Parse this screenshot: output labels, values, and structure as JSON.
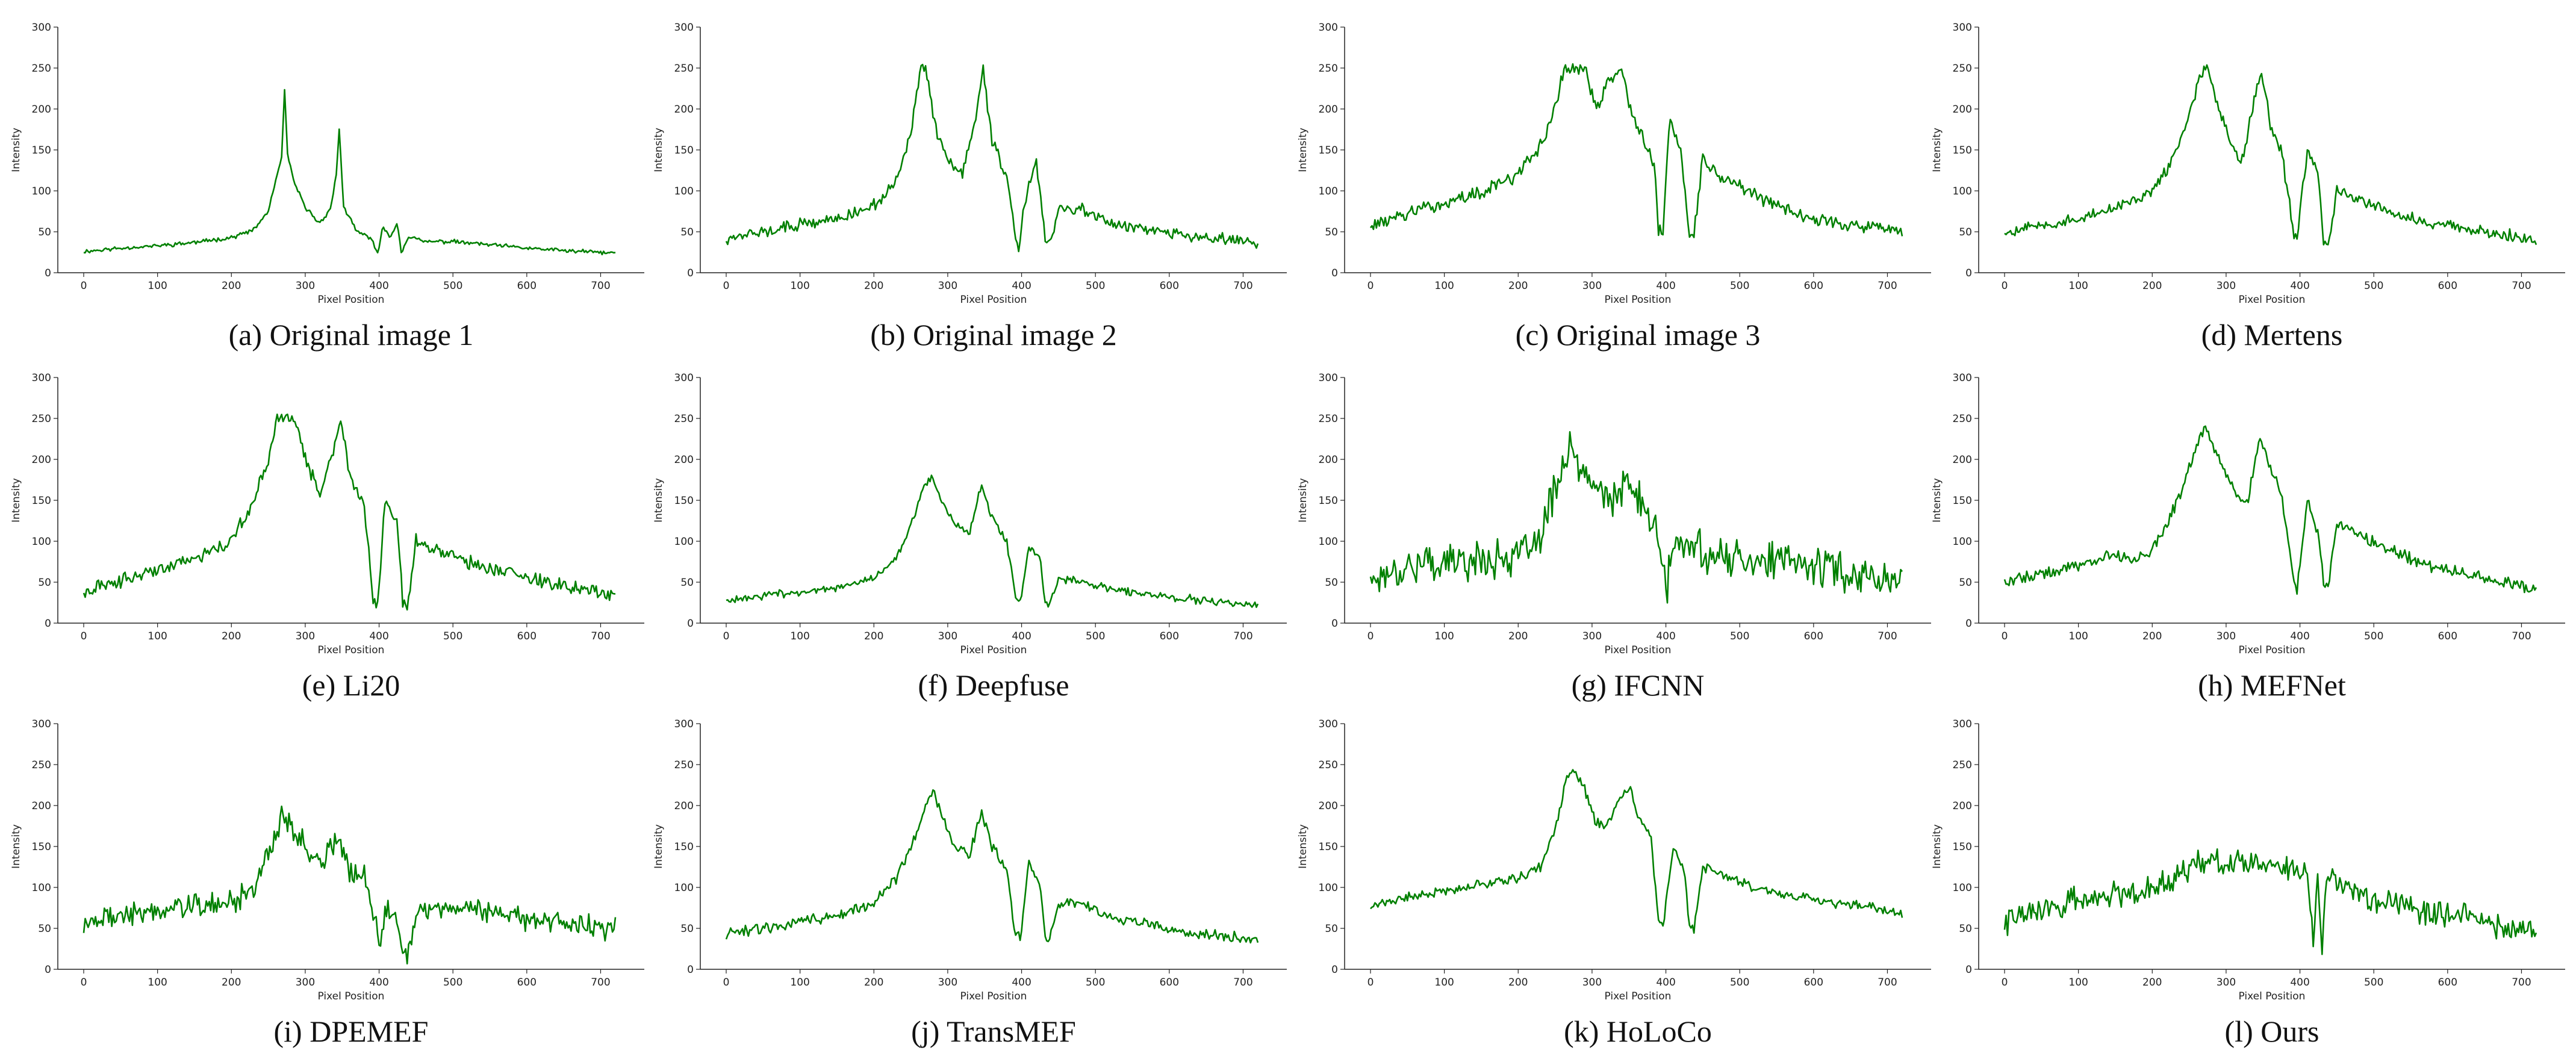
{
  "figure": {
    "layout": "3 rows x 4 columns of line plots"
  },
  "chart_data": [
    {
      "type": "line",
      "caption": "(a) Original image 1",
      "xlabel": "Pixel Position",
      "ylabel": "Intensity",
      "xlim": [
        0,
        720
      ],
      "ylim": [
        0,
        300
      ],
      "xticks": [
        0,
        100,
        200,
        300,
        400,
        500,
        600,
        700
      ],
      "yticks": [
        0,
        50,
        100,
        150,
        200,
        250,
        300
      ],
      "color": "#008000",
      "noise": 3,
      "seed": 11,
      "series": [
        {
          "name": "profile",
          "x": [
            0,
            50,
            100,
            150,
            200,
            230,
            250,
            262,
            268,
            272,
            276,
            285,
            300,
            320,
            335,
            342,
            346,
            352,
            370,
            390,
            398,
            405,
            415,
            425,
            430,
            440,
            460,
            500,
            550,
            600,
            650,
            720
          ],
          "y": [
            26,
            30,
            33,
            37,
            43,
            52,
            75,
            120,
            140,
            222,
            145,
            110,
            80,
            60,
            80,
            120,
            176,
            80,
            50,
            42,
            22,
            55,
            45,
            60,
            25,
            45,
            38,
            38,
            34,
            30,
            27,
            24
          ]
        }
      ]
    },
    {
      "type": "line",
      "caption": "(b) Original image 2",
      "xlabel": "Pixel Position",
      "ylabel": "Intensity",
      "xlim": [
        0,
        720
      ],
      "ylim": [
        0,
        300
      ],
      "xticks": [
        0,
        100,
        200,
        300,
        400,
        500,
        600,
        700
      ],
      "yticks": [
        0,
        50,
        100,
        150,
        200,
        250,
        300
      ],
      "color": "#008000",
      "noise": 9,
      "seed": 12,
      "series": [
        {
          "name": "profile",
          "x": [
            0,
            50,
            100,
            150,
            200,
            230,
            250,
            262,
            270,
            285,
            300,
            320,
            340,
            348,
            360,
            380,
            392,
            396,
            405,
            420,
            432,
            438,
            450,
            480,
            520,
            560,
            620,
            680,
            720
          ],
          "y": [
            42,
            50,
            58,
            66,
            82,
            110,
            170,
            245,
            250,
            170,
            140,
            120,
            200,
            250,
            160,
            120,
            40,
            30,
            90,
            140,
            40,
            35,
            75,
            78,
            62,
            55,
            46,
            40,
            36
          ]
        }
      ]
    },
    {
      "type": "line",
      "caption": "(c) Original image 3",
      "xlabel": "Pixel Position",
      "ylabel": "Intensity",
      "xlim": [
        0,
        720
      ],
      "ylim": [
        0,
        300
      ],
      "xticks": [
        0,
        100,
        200,
        300,
        400,
        500,
        600,
        700
      ],
      "yticks": [
        0,
        50,
        100,
        150,
        200,
        250,
        300
      ],
      "color": "#008000",
      "noise": 10,
      "seed": 13,
      "series": [
        {
          "name": "profile",
          "x": [
            0,
            50,
            100,
            150,
            200,
            230,
            250,
            262,
            290,
            305,
            320,
            340,
            352,
            370,
            385,
            390,
            396,
            405,
            420,
            432,
            438,
            450,
            470,
            520,
            570,
            620,
            680,
            720
          ],
          "y": [
            58,
            72,
            85,
            98,
            120,
            155,
            200,
            250,
            250,
            200,
            230,
            250,
            200,
            160,
            130,
            50,
            48,
            190,
            150,
            50,
            48,
            140,
            120,
            95,
            75,
            62,
            55,
            48
          ]
        }
      ]
    },
    {
      "type": "line",
      "caption": "(d) Mertens",
      "xlabel": "Pixel Position",
      "ylabel": "Intensity",
      "xlim": [
        0,
        720
      ],
      "ylim": [
        0,
        300
      ],
      "xticks": [
        0,
        100,
        200,
        300,
        400,
        500,
        600,
        700
      ],
      "yticks": [
        0,
        50,
        100,
        150,
        200,
        250,
        300
      ],
      "color": "#008000",
      "noise": 9,
      "seed": 14,
      "series": [
        {
          "name": "profile",
          "x": [
            0,
            50,
            100,
            150,
            200,
            230,
            250,
            265,
            275,
            290,
            305,
            320,
            340,
            348,
            360,
            375,
            392,
            396,
            410,
            425,
            432,
            438,
            450,
            480,
            520,
            570,
            630,
            690,
            720
          ],
          "y": [
            50,
            58,
            66,
            78,
            100,
            140,
            190,
            245,
            250,
            200,
            160,
            130,
            220,
            250,
            180,
            150,
            45,
            40,
            150,
            120,
            35,
            30,
            100,
            90,
            75,
            62,
            52,
            45,
            40
          ]
        }
      ]
    },
    {
      "type": "line",
      "caption": "(e) Li20",
      "xlabel": "Pixel Position",
      "ylabel": "Intensity",
      "xlim": [
        0,
        720
      ],
      "ylim": [
        0,
        300
      ],
      "xticks": [
        0,
        100,
        200,
        300,
        400,
        500,
        600,
        700
      ],
      "yticks": [
        0,
        50,
        100,
        150,
        200,
        250,
        300
      ],
      "color": "#008000",
      "noise": 10,
      "seed": 15,
      "series": [
        {
          "name": "profile",
          "x": [
            0,
            50,
            100,
            150,
            200,
            225,
            250,
            262,
            285,
            300,
            320,
            340,
            348,
            360,
            380,
            392,
            398,
            408,
            425,
            432,
            438,
            450,
            470,
            520,
            570,
            620,
            680,
            720
          ],
          "y": [
            38,
            52,
            65,
            78,
            100,
            140,
            200,
            250,
            250,
            200,
            160,
            220,
            250,
            180,
            140,
            30,
            22,
            150,
            120,
            25,
            22,
            100,
            92,
            75,
            62,
            50,
            42,
            35
          ]
        }
      ]
    },
    {
      "type": "line",
      "caption": "(f) Deepfuse",
      "xlabel": "Pixel Position",
      "ylabel": "Intensity",
      "xlim": [
        0,
        720
      ],
      "ylim": [
        0,
        300
      ],
      "xticks": [
        0,
        100,
        200,
        300,
        400,
        500,
        600,
        700
      ],
      "yticks": [
        0,
        50,
        100,
        150,
        200,
        250,
        300
      ],
      "color": "#008000",
      "noise": 6,
      "seed": 16,
      "series": [
        {
          "name": "profile",
          "x": [
            0,
            50,
            100,
            150,
            200,
            230,
            255,
            268,
            278,
            290,
            310,
            330,
            345,
            360,
            380,
            392,
            398,
            410,
            425,
            432,
            438,
            450,
            480,
            520,
            570,
            620,
            680,
            712,
            720
          ],
          "y": [
            28,
            33,
            38,
            44,
            55,
            80,
            130,
            170,
            178,
            150,
            120,
            110,
            170,
            130,
            100,
            30,
            28,
            90,
            80,
            25,
            22,
            55,
            50,
            42,
            35,
            30,
            24,
            20,
            25
          ]
        }
      ]
    },
    {
      "type": "line",
      "caption": "(g) IFCNN",
      "xlabel": "Pixel Position",
      "ylabel": "Intensity",
      "xlim": [
        0,
        720
      ],
      "ylim": [
        0,
        300
      ],
      "xticks": [
        0,
        100,
        200,
        300,
        400,
        500,
        600,
        700
      ],
      "yticks": [
        0,
        50,
        100,
        150,
        200,
        250,
        300
      ],
      "color": "#008000",
      "noise": 28,
      "seed": 17,
      "series": [
        {
          "name": "profile",
          "x": [
            0,
            50,
            100,
            150,
            200,
            230,
            250,
            270,
            290,
            310,
            330,
            350,
            370,
            385,
            395,
            400,
            410,
            425,
            440,
            460,
            500,
            550,
            600,
            650,
            720
          ],
          "y": [
            55,
            70,
            75,
            78,
            80,
            100,
            170,
            210,
            180,
            160,
            150,
            170,
            140,
            120,
            80,
            30,
            100,
            90,
            100,
            80,
            80,
            75,
            70,
            62,
            50
          ]
        }
      ]
    },
    {
      "type": "line",
      "caption": "(h) MEFNet",
      "xlabel": "Pixel Position",
      "ylabel": "Intensity",
      "xlim": [
        0,
        720
      ],
      "ylim": [
        0,
        300
      ],
      "xticks": [
        0,
        100,
        200,
        300,
        400,
        500,
        600,
        700
      ],
      "yticks": [
        0,
        50,
        100,
        150,
        200,
        250,
        300
      ],
      "color": "#008000",
      "noise": 9,
      "seed": 18,
      "series": [
        {
          "name": "profile",
          "x": [
            0,
            50,
            100,
            150,
            170,
            200,
            230,
            255,
            270,
            290,
            310,
            330,
            345,
            360,
            375,
            392,
            396,
            410,
            425,
            432,
            438,
            450,
            480,
            520,
            570,
            630,
            690,
            720
          ],
          "y": [
            52,
            60,
            70,
            85,
            75,
            90,
            140,
            200,
            240,
            200,
            160,
            150,
            230,
            190,
            160,
            45,
            42,
            150,
            110,
            45,
            42,
            125,
            105,
            90,
            72,
            58,
            48,
            42
          ]
        }
      ]
    },
    {
      "type": "line",
      "caption": "(i) DPEMEF",
      "xlabel": "Pixel Position",
      "ylabel": "Intensity",
      "xlim": [
        0,
        720
      ],
      "ylim": [
        0,
        300
      ],
      "xticks": [
        0,
        100,
        200,
        300,
        400,
        500,
        600,
        700
      ],
      "yticks": [
        0,
        50,
        100,
        150,
        200,
        250,
        300
      ],
      "color": "#008000",
      "noise": 18,
      "seed": 19,
      "series": [
        {
          "name": "profile",
          "x": [
            0,
            50,
            100,
            150,
            200,
            230,
            255,
            268,
            285,
            300,
            320,
            345,
            360,
            380,
            395,
            400,
            410,
            425,
            432,
            438,
            450,
            480,
            520,
            570,
            620,
            680,
            720
          ],
          "y": [
            58,
            65,
            72,
            78,
            80,
            100,
            150,
            190,
            170,
            150,
            130,
            160,
            120,
            110,
            60,
            30,
            80,
            60,
            25,
            20,
            70,
            75,
            75,
            68,
            60,
            55,
            48
          ]
        }
      ]
    },
    {
      "type": "line",
      "caption": "(j) TransMEF",
      "xlabel": "Pixel Position",
      "ylabel": "Intensity",
      "xlim": [
        0,
        720
      ],
      "ylim": [
        0,
        300
      ],
      "xticks": [
        0,
        100,
        200,
        300,
        400,
        500,
        600,
        700
      ],
      "yticks": [
        0,
        50,
        100,
        150,
        200,
        250,
        300
      ],
      "color": "#008000",
      "noise": 8,
      "seed": 20,
      "series": [
        {
          "name": "profile",
          "x": [
            0,
            50,
            100,
            150,
            200,
            230,
            255,
            270,
            280,
            295,
            310,
            330,
            345,
            360,
            380,
            392,
            398,
            410,
            425,
            432,
            438,
            450,
            480,
            520,
            570,
            620,
            680,
            720
          ],
          "y": [
            42,
            50,
            58,
            66,
            80,
            110,
            160,
            200,
            220,
            180,
            150,
            140,
            195,
            150,
            120,
            40,
            38,
            130,
            100,
            38,
            35,
            80,
            80,
            65,
            55,
            45,
            40,
            36
          ]
        }
      ]
    },
    {
      "type": "line",
      "caption": "(k) HoLoCo",
      "xlabel": "Pixel Position",
      "ylabel": "Intensity",
      "xlim": [
        0,
        720
      ],
      "ylim": [
        0,
        300
      ],
      "xticks": [
        0,
        100,
        200,
        300,
        400,
        500,
        600,
        700
      ],
      "yticks": [
        0,
        50,
        100,
        150,
        200,
        250,
        300
      ],
      "color": "#008000",
      "noise": 7,
      "seed": 21,
      "series": [
        {
          "name": "profile",
          "x": [
            0,
            50,
            100,
            150,
            200,
            230,
            250,
            265,
            275,
            290,
            305,
            320,
            340,
            350,
            360,
            380,
            390,
            396,
            410,
            425,
            432,
            438,
            450,
            480,
            520,
            570,
            620,
            680,
            720
          ],
          "y": [
            78,
            88,
            96,
            104,
            112,
            125,
            170,
            230,
            245,
            220,
            180,
            175,
            210,
            225,
            190,
            160,
            60,
            52,
            150,
            120,
            55,
            50,
            125,
            115,
            100,
            90,
            82,
            75,
            68
          ]
        }
      ]
    },
    {
      "type": "line",
      "caption": "(l) Ours",
      "xlabel": "Pixel Position",
      "ylabel": "Intensity",
      "xlim": [
        0,
        720
      ],
      "ylim": [
        0,
        300
      ],
      "xticks": [
        0,
        100,
        200,
        300,
        400,
        500,
        600,
        700
      ],
      "yticks": [
        0,
        50,
        100,
        150,
        200,
        250,
        300
      ],
      "color": "#008000",
      "noise": 20,
      "seed": 22,
      "series": [
        {
          "name": "profile",
          "x": [
            0,
            50,
            100,
            150,
            200,
            230,
            260,
            290,
            320,
            350,
            380,
            400,
            410,
            418,
            424,
            430,
            436,
            450,
            480,
            520,
            570,
            620,
            680,
            720
          ],
          "y": [
            58,
            72,
            85,
            92,
            100,
            115,
            130,
            130,
            128,
            130,
            128,
            115,
            120,
            30,
            110,
            22,
            110,
            110,
            90,
            80,
            72,
            62,
            52,
            45
          ]
        }
      ]
    }
  ]
}
